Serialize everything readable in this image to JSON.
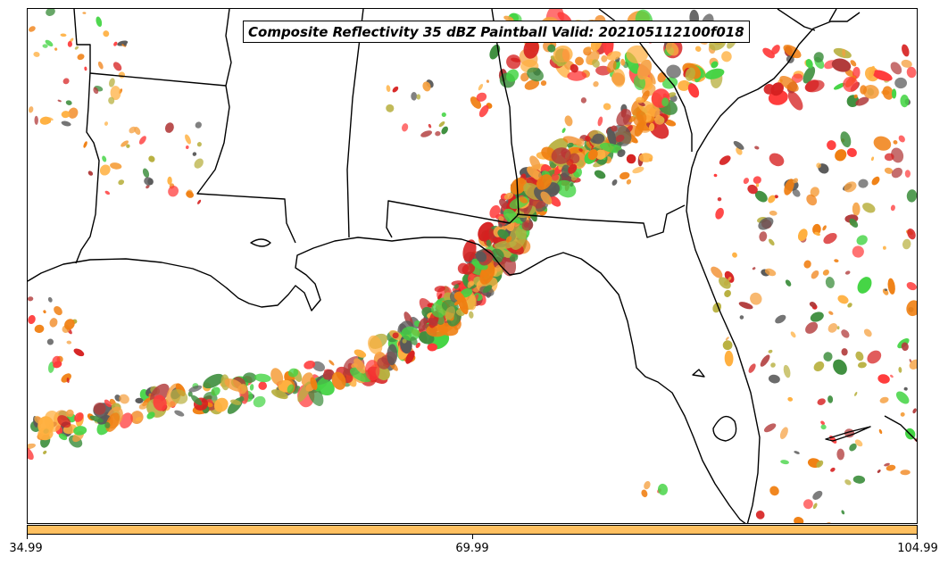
{
  "title": "Composite Reflectivity 35 dBZ Paintball Valid: 202105112100f018",
  "colorbar": {
    "color": "#ffc060",
    "ticks": [
      "34.99",
      "69.99",
      "104.99"
    ]
  },
  "paintball_colors": [
    "#ff3b3b",
    "#f07f12",
    "#b13a3a",
    "#3f8f3f",
    "#44d444",
    "#b8b040",
    "#ffb040",
    "#595959",
    "#d62020",
    "#f5a040"
  ],
  "map": {
    "features": [
      "state-boundaries",
      "coastline",
      "paintball-reflectivity-blobs"
    ]
  }
}
